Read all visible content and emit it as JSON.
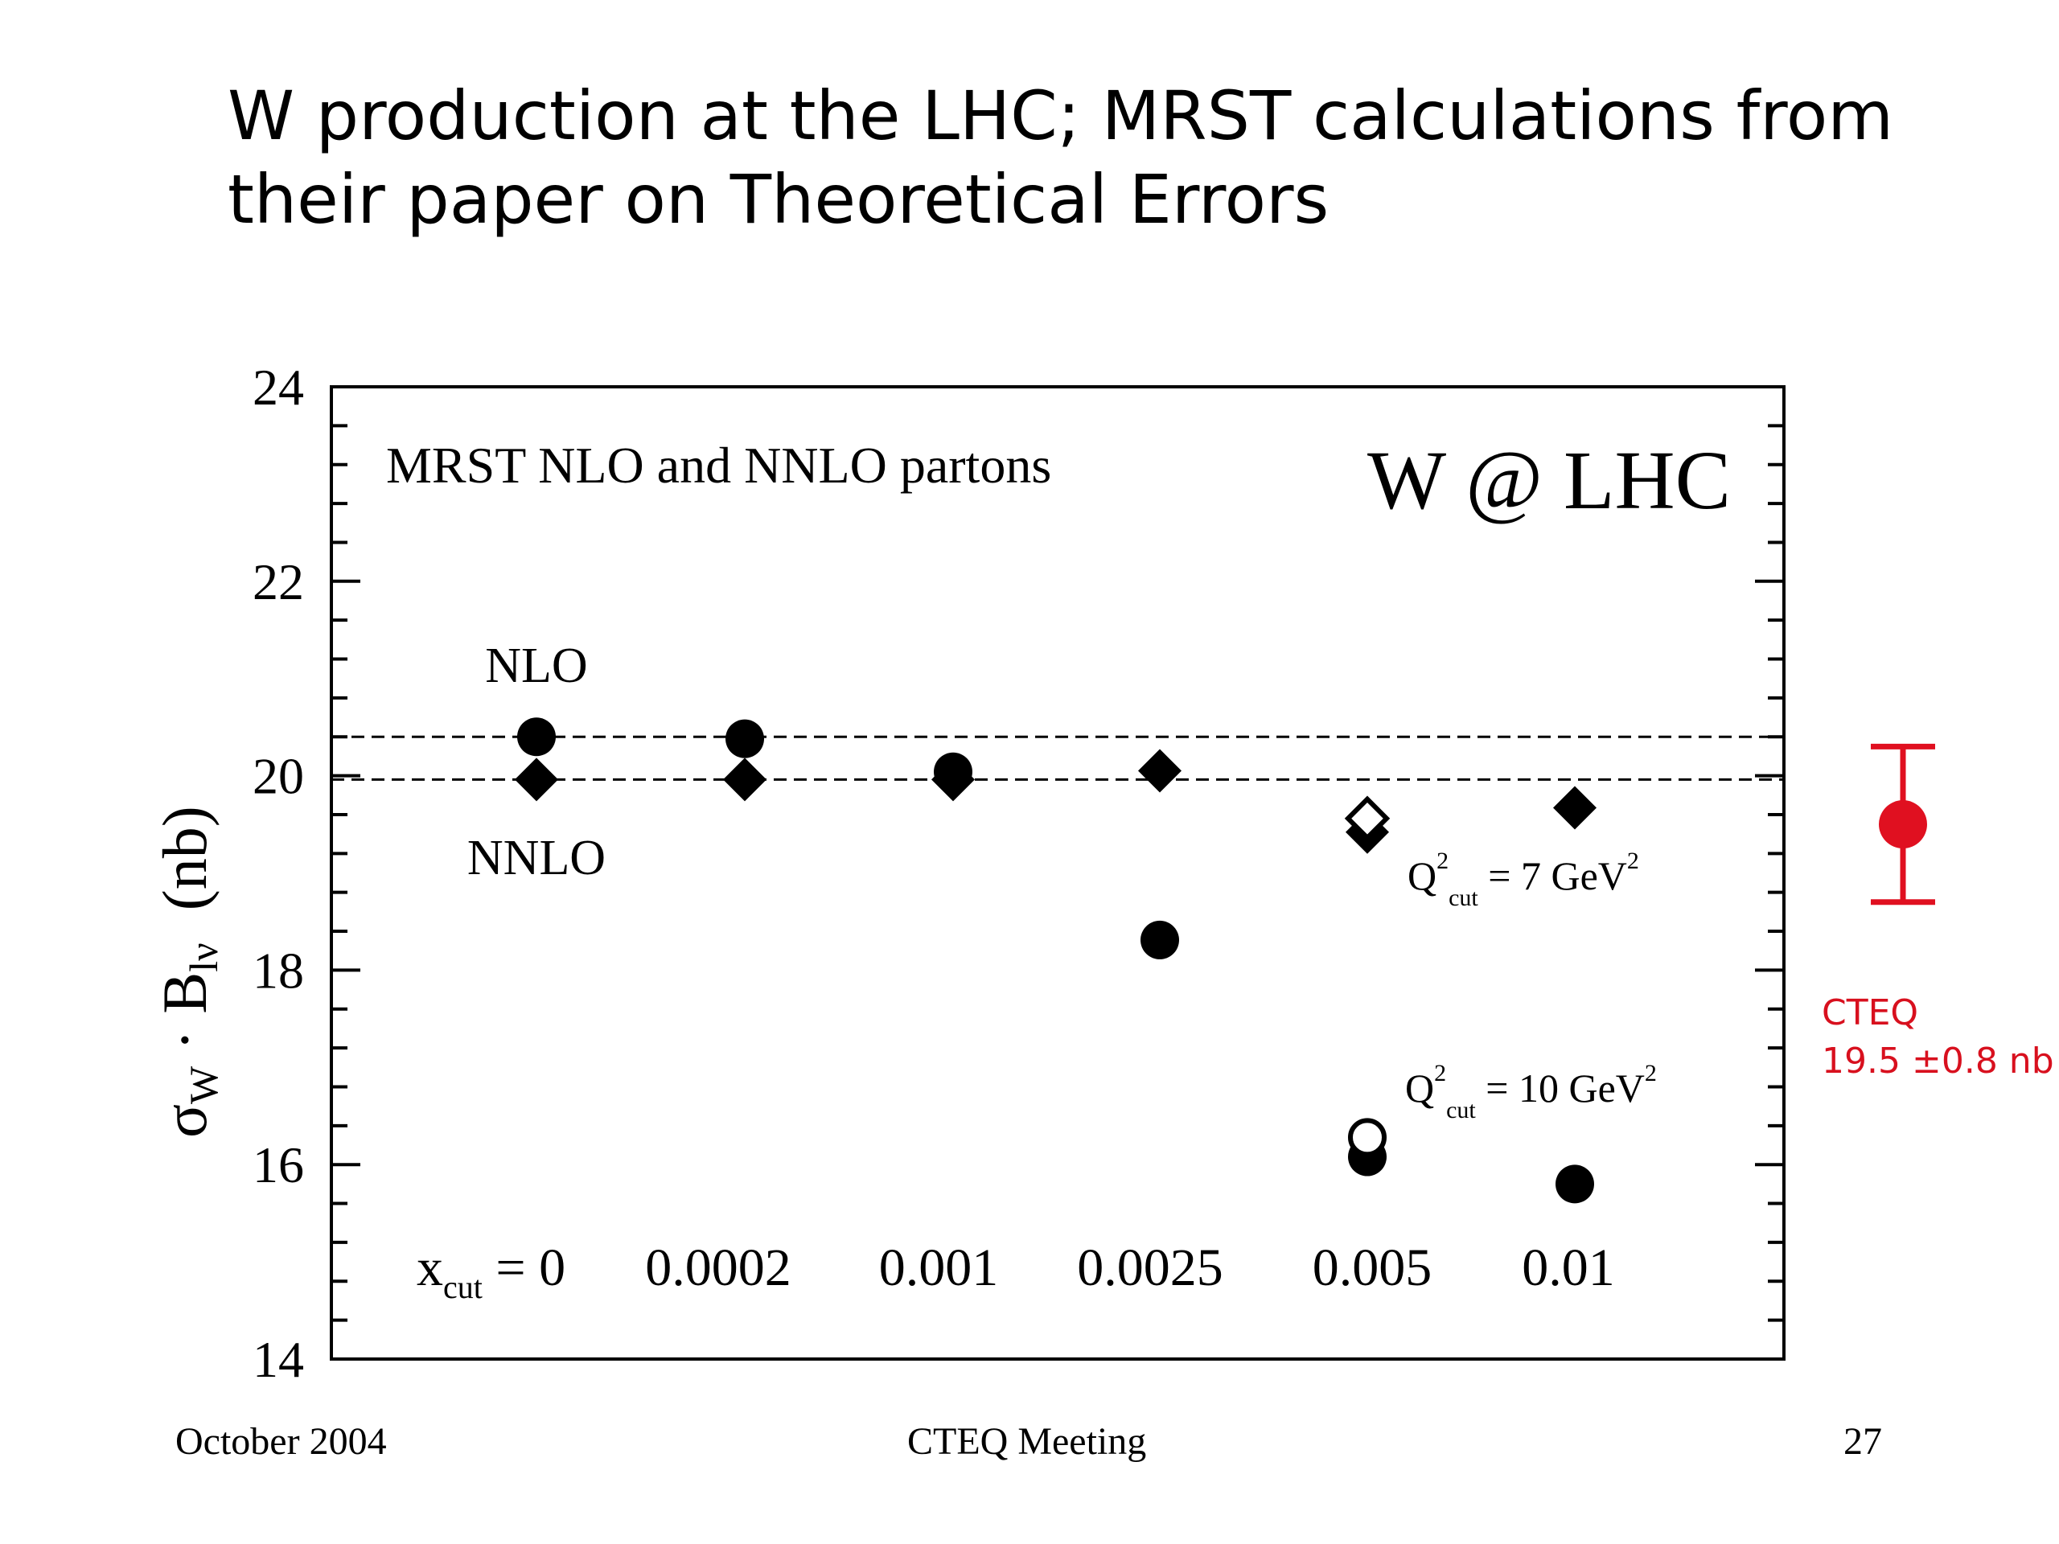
{
  "slide": {
    "title_line1": "W production at the LHC; MRST calculations from",
    "title_line2": "their paper on Theoretical Errors",
    "footer_left": "October 2004",
    "footer_center": "CTEQ Meeting",
    "footer_right": "27"
  },
  "chart_data": {
    "type": "scatter",
    "title": "W @ LHC",
    "subtitle": "MRST NLO and NNLO partons",
    "ylabel": {
      "main": "σ",
      "main_sub": "W",
      "dot": " · B",
      "b_sub": "lν",
      "unit": "(nb)"
    },
    "ylim": [
      14,
      24
    ],
    "yticks": [
      14,
      16,
      18,
      20,
      22,
      24
    ],
    "y_minor_step": 0.4,
    "grid": false,
    "categories": [
      "0",
      "0.0002",
      "0.001",
      "0.0025",
      "0.005",
      "0.01"
    ],
    "category_prefix": {
      "x": "x",
      "sub": "cut",
      "eq": " = "
    },
    "reference_lines": [
      20.4,
      19.96
    ],
    "series": [
      {
        "name": "NLO",
        "marker": "circle-filled",
        "x": [
          0,
          1,
          2,
          3,
          4,
          5
        ],
        "y": [
          20.4,
          20.38,
          20.04,
          18.31,
          16.08,
          15.8
        ]
      },
      {
        "name": "NNLO",
        "marker": "diamond-filled",
        "x": [
          0,
          1,
          2,
          3,
          4,
          5
        ],
        "y": [
          19.96,
          19.96,
          19.96,
          20.05,
          19.42,
          19.67
        ]
      },
      {
        "name": "",
        "marker": "circle-open",
        "x": [
          4
        ],
        "y": [
          16.28
        ]
      },
      {
        "name": "",
        "marker": "diamond-open",
        "x": [
          4
        ],
        "y": [
          19.56
        ]
      }
    ],
    "annotations": {
      "nlo_label": "NLO",
      "nnlo_label": "NNLO",
      "q2_cut_7": {
        "q": "Q",
        "sup": "2",
        "sub": "cut",
        "rest": " = 7 GeV",
        "unit_sup": "2"
      },
      "q2_cut_10": {
        "q": "Q",
        "sup": "2",
        "sub": "cut",
        "rest": " = 10 GeV",
        "unit_sup": "2"
      }
    },
    "external_point": {
      "label": "CTEQ",
      "text": "19.5 ",
      "symbol": "±",
      "text2": "0.8 nb",
      "value": 19.5,
      "error": 0.8,
      "color": "#e01020"
    }
  }
}
